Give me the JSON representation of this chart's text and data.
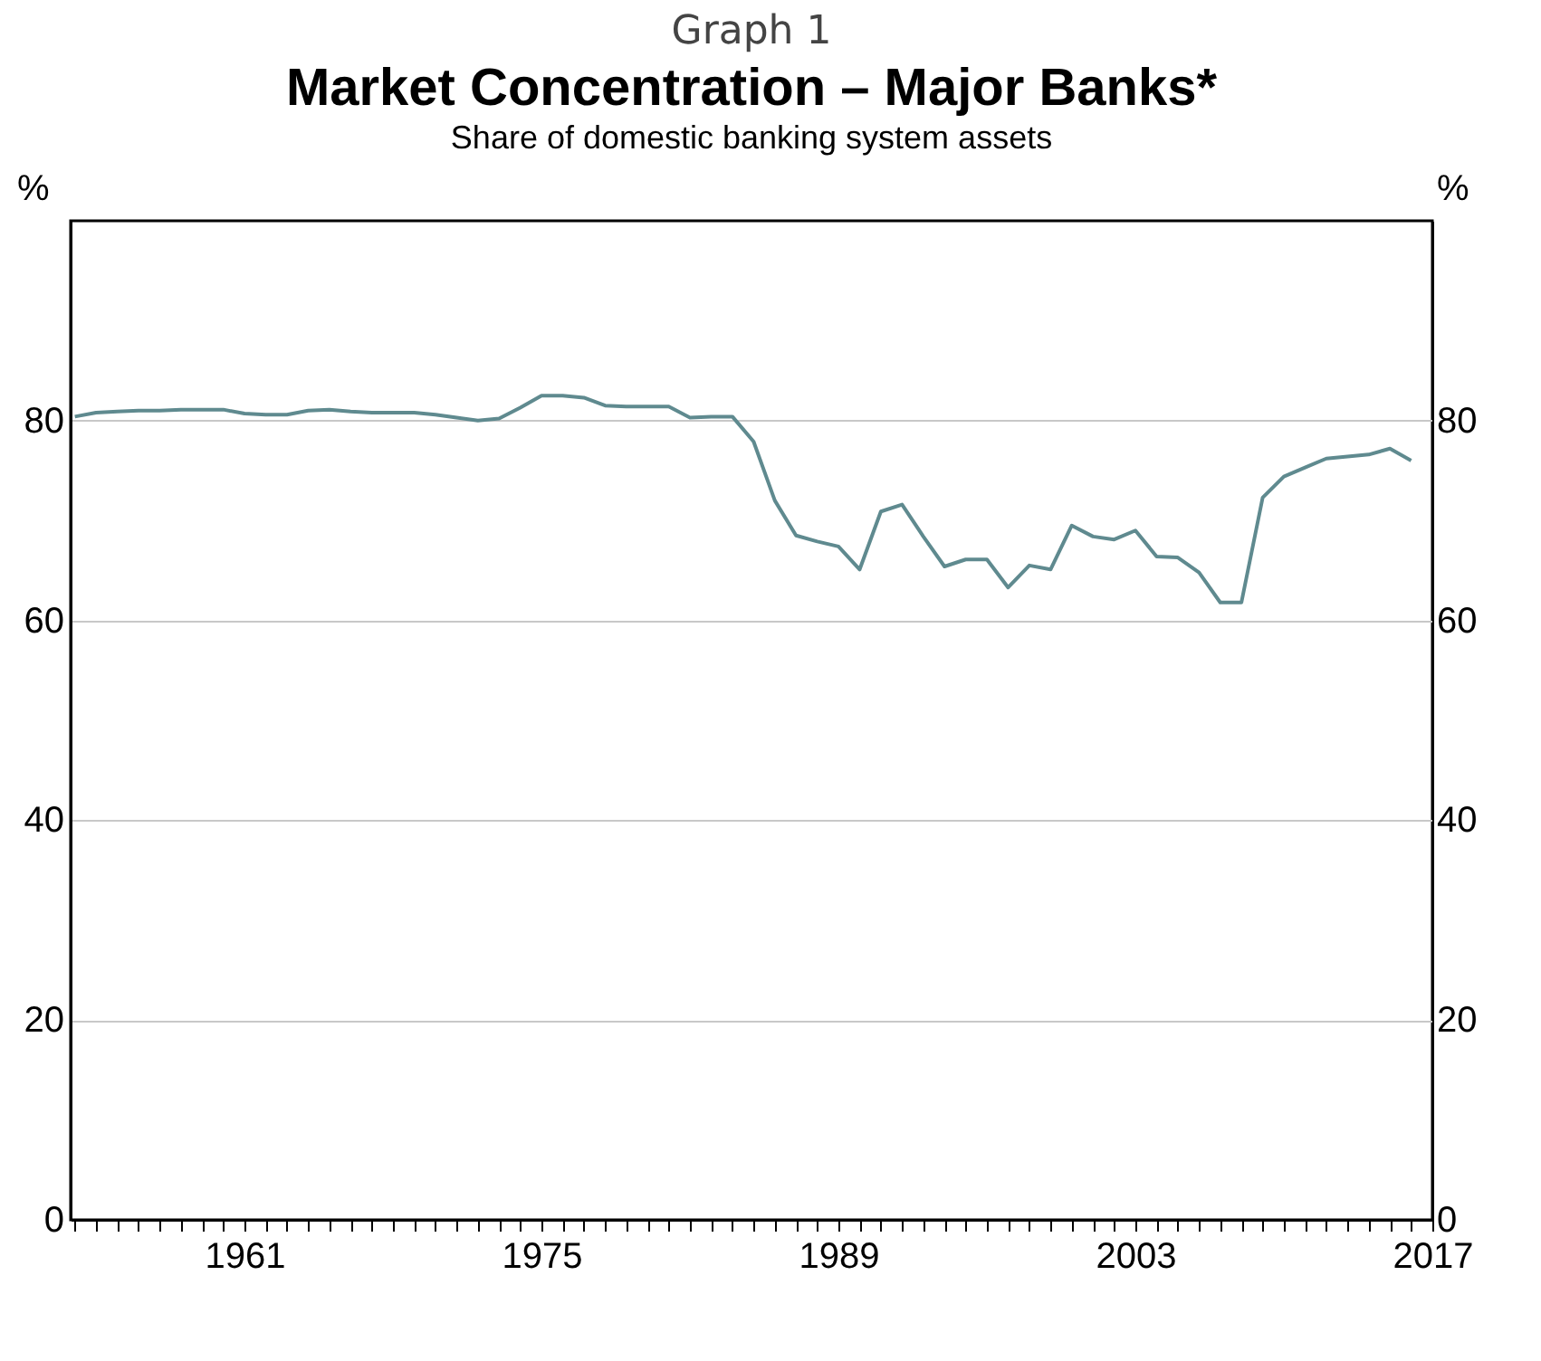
{
  "chart_data": {
    "type": "line",
    "title": "Market Concentration – Major Banks*",
    "subtitle": "Share of domestic banking system assets",
    "annotations": [
      "Graph 1"
    ],
    "ylabel": "%",
    "y2label": "%",
    "x": [
      1953,
      1954,
      1955,
      1956,
      1957,
      1958,
      1959,
      1960,
      1961,
      1962,
      1963,
      1964,
      1965,
      1966,
      1967,
      1968,
      1969,
      1970,
      1971,
      1972,
      1973,
      1974,
      1975,
      1976,
      1977,
      1978,
      1979,
      1980,
      1981,
      1982,
      1983,
      1984,
      1985,
      1986,
      1987,
      1988,
      1989,
      1990,
      1991,
      1992,
      1993,
      1994,
      1995,
      1996,
      1997,
      1998,
      1999,
      2000,
      2001,
      2002,
      2003,
      2004,
      2005,
      2006,
      2007,
      2008,
      2009,
      2010,
      2011,
      2012,
      2013,
      2014,
      2015,
      2016
    ],
    "series": [
      {
        "color": "#5f8a8f",
        "values": [
          80.4,
          80.8,
          80.9,
          81.0,
          81.0,
          81.1,
          81.1,
          81.1,
          80.7,
          80.6,
          80.6,
          81.0,
          81.1,
          80.9,
          80.8,
          80.8,
          80.8,
          80.6,
          80.3,
          80.0,
          80.2,
          81.3,
          82.5,
          82.5,
          82.3,
          81.5,
          81.4,
          81.4,
          81.4,
          80.3,
          80.4,
          80.4,
          77.9,
          72.0,
          68.5,
          67.9,
          67.4,
          65.1,
          70.9,
          71.6,
          68.4,
          65.4,
          66.1,
          66.1,
          63.3,
          65.5,
          65.1,
          69.5,
          68.4,
          68.1,
          69.0,
          66.4,
          66.3,
          64.8,
          61.8,
          61.8,
          72.3,
          74.4,
          75.3,
          76.2,
          76.4,
          76.6,
          77.2,
          76.0
        ]
      }
    ],
    "xlim": [
      1952.8,
      2017
    ],
    "xticks": [
      {
        "value": 1953,
        "label": null
      },
      {
        "value": 1954,
        "label": null
      },
      {
        "value": 1955,
        "label": null
      },
      {
        "value": 1956,
        "label": null
      },
      {
        "value": 1957,
        "label": null
      },
      {
        "value": 1958,
        "label": null
      },
      {
        "value": 1959,
        "label": null
      },
      {
        "value": 1960,
        "label": null
      },
      1961,
      {
        "value": 1962,
        "label": null
      },
      {
        "value": 1963,
        "label": null
      },
      {
        "value": 1964,
        "label": null
      },
      {
        "value": 1965,
        "label": null
      },
      {
        "value": 1966,
        "label": null
      },
      {
        "value": 1967,
        "label": null
      },
      {
        "value": 1968,
        "label": null
      },
      {
        "value": 1969,
        "label": null
      },
      {
        "value": 1970,
        "label": null
      },
      {
        "value": 1971,
        "label": null
      },
      {
        "value": 1972,
        "label": null
      },
      {
        "value": 1973,
        "label": null
      },
      {
        "value": 1974,
        "label": null
      },
      1975,
      {
        "value": 1976,
        "label": null
      },
      {
        "value": 1977,
        "label": null
      },
      {
        "value": 1978,
        "label": null
      },
      {
        "value": 1979,
        "label": null
      },
      {
        "value": 1980,
        "label": null
      },
      {
        "value": 1981,
        "label": null
      },
      {
        "value": 1982,
        "label": null
      },
      {
        "value": 1983,
        "label": null
      },
      {
        "value": 1984,
        "label": null
      },
      {
        "value": 1985,
        "label": null
      },
      {
        "value": 1986,
        "label": null
      },
      {
        "value": 1987,
        "label": null
      },
      {
        "value": 1988,
        "label": null
      },
      1989,
      {
        "value": 1990,
        "label": null
      },
      {
        "value": 1991,
        "label": null
      },
      {
        "value": 1992,
        "label": null
      },
      {
        "value": 1993,
        "label": null
      },
      {
        "value": 1994,
        "label": null
      },
      {
        "value": 1995,
        "label": null
      },
      {
        "value": 1996,
        "label": null
      },
      {
        "value": 1997,
        "label": null
      },
      {
        "value": 1998,
        "label": null
      },
      {
        "value": 1999,
        "label": null
      },
      {
        "value": 2000,
        "label": null
      },
      {
        "value": 2001,
        "label": null
      },
      {
        "value": 2002,
        "label": null
      },
      2003,
      {
        "value": 2004,
        "label": null
      },
      {
        "value": 2005,
        "label": null
      },
      {
        "value": 2006,
        "label": null
      },
      {
        "value": 2007,
        "label": null
      },
      {
        "value": 2008,
        "label": null
      },
      {
        "value": 2009,
        "label": null
      },
      {
        "value": 2010,
        "label": null
      },
      {
        "value": 2011,
        "label": null
      },
      {
        "value": 2012,
        "label": null
      },
      {
        "value": 2013,
        "label": null
      },
      {
        "value": 2014,
        "label": null
      },
      {
        "value": 2015,
        "label": null
      },
      {
        "value": 2016,
        "label": null
      },
      2017
    ],
    "ylim": [
      0,
      100
    ],
    "yticks": [
      0,
      20,
      40,
      60,
      80
    ],
    "y2lim": [
      0,
      100
    ],
    "y2ticks": [
      0,
      20,
      40,
      60,
      80
    ],
    "grid": "y",
    "marker": "none",
    "line_style": "solid"
  }
}
